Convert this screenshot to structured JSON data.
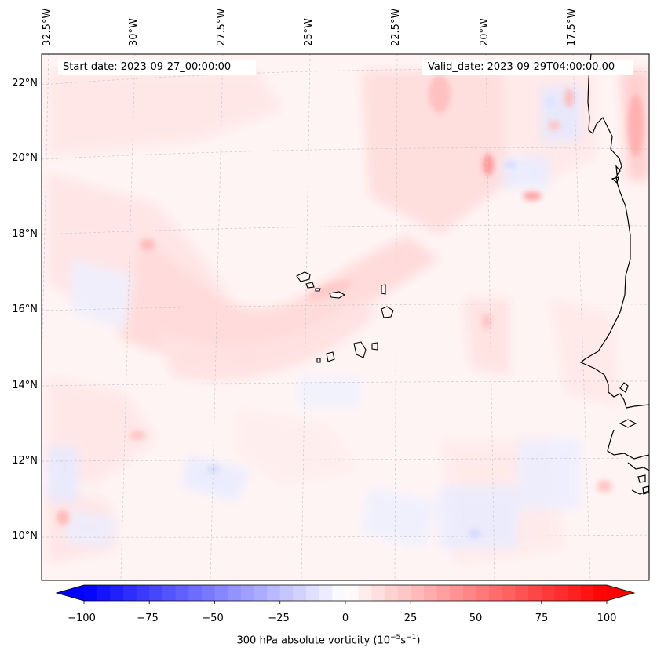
{
  "header": {
    "start_date": "Start date: 2023-09-27_00:00:00",
    "valid_date": "Valid_date: 2023-09-29T04:00:00.00"
  },
  "axes": {
    "lon_labels": [
      "32.5°W",
      "30°W",
      "27.5°W",
      "25°W",
      "22.5°W",
      "20°W",
      "17.5°W"
    ],
    "lat_labels": [
      "22°N",
      "20°N",
      "18°N",
      "16°N",
      "14°N",
      "12°N",
      "10°N"
    ]
  },
  "colorbar": {
    "ticks": [
      "−100",
      "−75",
      "−50",
      "−25",
      "0",
      "25",
      "50",
      "75",
      "100"
    ],
    "title": "300 hPa absolute vorticity (10",
    "title_exp1": "−5",
    "title_mid": "s",
    "title_exp2": "−1",
    "title_end": ")",
    "min_color": "#0000ff",
    "zero_color": "#ffffff",
    "max_color": "#ff0000"
  }
}
